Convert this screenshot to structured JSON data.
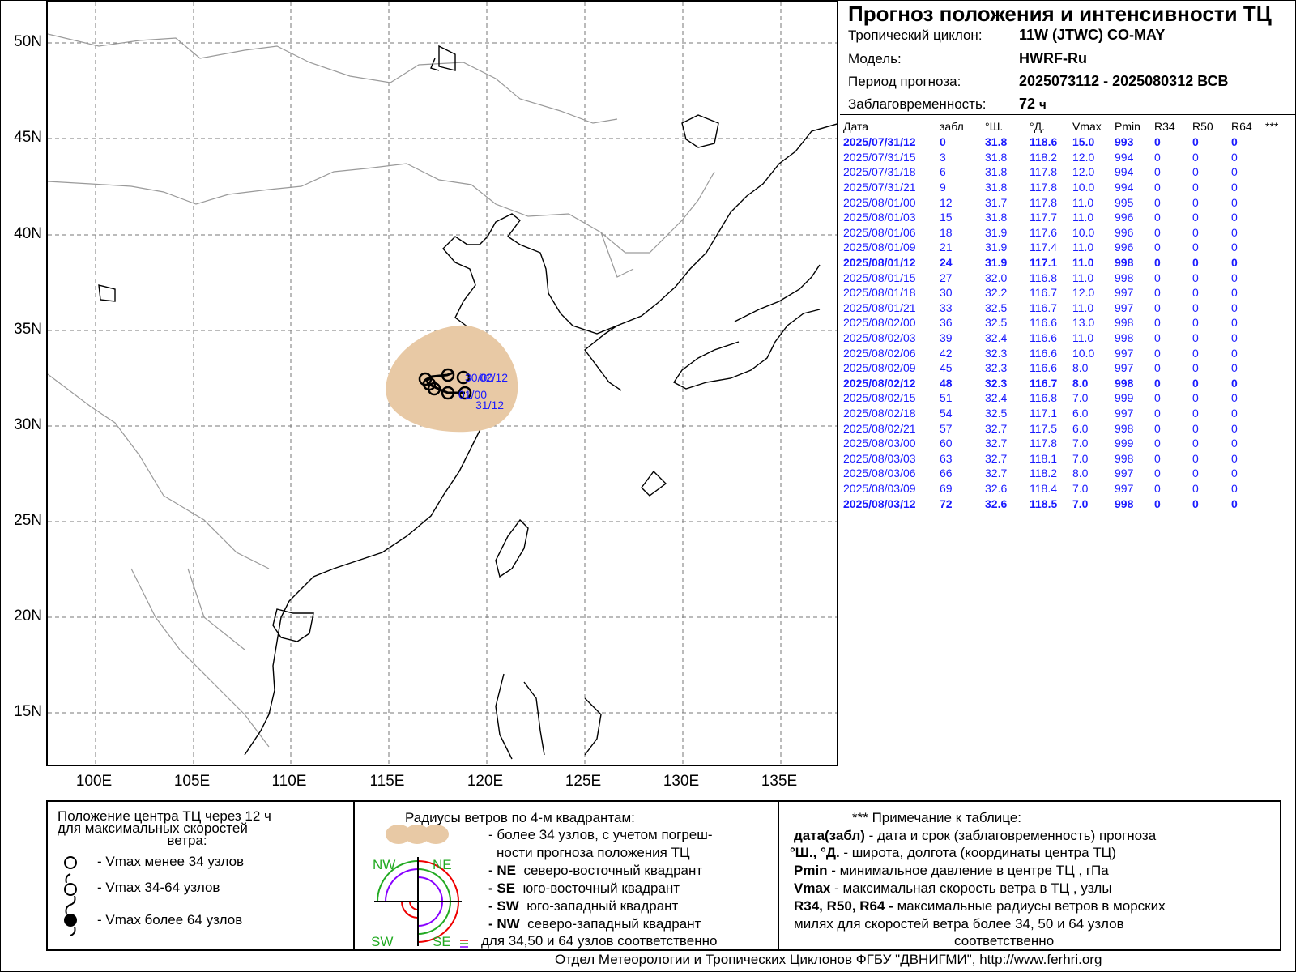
{
  "header": {
    "title": "Прогноз положения и интенсивности ТЦ",
    "cyclone_label": "Тропический циклон:",
    "cyclone_value": "11W (JTWC)  CO-MAY",
    "model_label": "Модель:",
    "model_value": "HWRF-Ru",
    "period_label": "Период прогноза:",
    "period_value": "2025073112 - 2025080312 ВСВ",
    "lead_label": "Заблаговременность:",
    "lead_value": "72",
    "lead_unit": "ч"
  },
  "table": {
    "columns": [
      "Дата",
      "забл",
      "°Ш.",
      "°Д.",
      "Vmax",
      "Pmin",
      "R34",
      "R50",
      "R64",
      "***"
    ],
    "rows": [
      {
        "date": "2025/07/31/12",
        "lead": "0",
        "lat": "31.8",
        "lon": "118.6",
        "vmax": "15.0",
        "pmin": "993",
        "r34": "0",
        "r50": "0",
        "r64": "0",
        "bold": true
      },
      {
        "date": "2025/07/31/15",
        "lead": "3",
        "lat": "31.8",
        "lon": "118.2",
        "vmax": "12.0",
        "pmin": "994",
        "r34": "0",
        "r50": "0",
        "r64": "0",
        "bold": false
      },
      {
        "date": "2025/07/31/18",
        "lead": "6",
        "lat": "31.8",
        "lon": "117.8",
        "vmax": "12.0",
        "pmin": "994",
        "r34": "0",
        "r50": "0",
        "r64": "0",
        "bold": false
      },
      {
        "date": "2025/07/31/21",
        "lead": "9",
        "lat": "31.8",
        "lon": "117.8",
        "vmax": "10.0",
        "pmin": "994",
        "r34": "0",
        "r50": "0",
        "r64": "0",
        "bold": false
      },
      {
        "date": "2025/08/01/00",
        "lead": "12",
        "lat": "31.7",
        "lon": "117.8",
        "vmax": "11.0",
        "pmin": "995",
        "r34": "0",
        "r50": "0",
        "r64": "0",
        "bold": false
      },
      {
        "date": "2025/08/01/03",
        "lead": "15",
        "lat": "31.8",
        "lon": "117.7",
        "vmax": "11.0",
        "pmin": "996",
        "r34": "0",
        "r50": "0",
        "r64": "0",
        "bold": false
      },
      {
        "date": "2025/08/01/06",
        "lead": "18",
        "lat": "31.9",
        "lon": "117.6",
        "vmax": "10.0",
        "pmin": "996",
        "r34": "0",
        "r50": "0",
        "r64": "0",
        "bold": false
      },
      {
        "date": "2025/08/01/09",
        "lead": "21",
        "lat": "31.9",
        "lon": "117.4",
        "vmax": "11.0",
        "pmin": "996",
        "r34": "0",
        "r50": "0",
        "r64": "0",
        "bold": false
      },
      {
        "date": "2025/08/01/12",
        "lead": "24",
        "lat": "31.9",
        "lon": "117.1",
        "vmax": "11.0",
        "pmin": "998",
        "r34": "0",
        "r50": "0",
        "r64": "0",
        "bold": true
      },
      {
        "date": "2025/08/01/15",
        "lead": "27",
        "lat": "32.0",
        "lon": "116.8",
        "vmax": "11.0",
        "pmin": "998",
        "r34": "0",
        "r50": "0",
        "r64": "0",
        "bold": false
      },
      {
        "date": "2025/08/01/18",
        "lead": "30",
        "lat": "32.2",
        "lon": "116.7",
        "vmax": "12.0",
        "pmin": "997",
        "r34": "0",
        "r50": "0",
        "r64": "0",
        "bold": false
      },
      {
        "date": "2025/08/01/21",
        "lead": "33",
        "lat": "32.5",
        "lon": "116.7",
        "vmax": "11.0",
        "pmin": "997",
        "r34": "0",
        "r50": "0",
        "r64": "0",
        "bold": false
      },
      {
        "date": "2025/08/02/00",
        "lead": "36",
        "lat": "32.5",
        "lon": "116.6",
        "vmax": "13.0",
        "pmin": "998",
        "r34": "0",
        "r50": "0",
        "r64": "0",
        "bold": false
      },
      {
        "date": "2025/08/02/03",
        "lead": "39",
        "lat": "32.4",
        "lon": "116.6",
        "vmax": "11.0",
        "pmin": "998",
        "r34": "0",
        "r50": "0",
        "r64": "0",
        "bold": false
      },
      {
        "date": "2025/08/02/06",
        "lead": "42",
        "lat": "32.3",
        "lon": "116.6",
        "vmax": "10.0",
        "pmin": "997",
        "r34": "0",
        "r50": "0",
        "r64": "0",
        "bold": false
      },
      {
        "date": "2025/08/02/09",
        "lead": "45",
        "lat": "32.3",
        "lon": "116.6",
        "vmax": "8.0",
        "pmin": "997",
        "r34": "0",
        "r50": "0",
        "r64": "0",
        "bold": false
      },
      {
        "date": "2025/08/02/12",
        "lead": "48",
        "lat": "32.3",
        "lon": "116.7",
        "vmax": "8.0",
        "pmin": "998",
        "r34": "0",
        "r50": "0",
        "r64": "0",
        "bold": true
      },
      {
        "date": "2025/08/02/15",
        "lead": "51",
        "lat": "32.4",
        "lon": "116.8",
        "vmax": "7.0",
        "pmin": "999",
        "r34": "0",
        "r50": "0",
        "r64": "0",
        "bold": false
      },
      {
        "date": "2025/08/02/18",
        "lead": "54",
        "lat": "32.5",
        "lon": "117.1",
        "vmax": "6.0",
        "pmin": "997",
        "r34": "0",
        "r50": "0",
        "r64": "0",
        "bold": false
      },
      {
        "date": "2025/08/02/21",
        "lead": "57",
        "lat": "32.7",
        "lon": "117.5",
        "vmax": "6.0",
        "pmin": "998",
        "r34": "0",
        "r50": "0",
        "r64": "0",
        "bold": false
      },
      {
        "date": "2025/08/03/00",
        "lead": "60",
        "lat": "32.7",
        "lon": "117.8",
        "vmax": "7.0",
        "pmin": "999",
        "r34": "0",
        "r50": "0",
        "r64": "0",
        "bold": false
      },
      {
        "date": "2025/08/03/03",
        "lead": "63",
        "lat": "32.7",
        "lon": "118.1",
        "vmax": "7.0",
        "pmin": "998",
        "r34": "0",
        "r50": "0",
        "r64": "0",
        "bold": false
      },
      {
        "date": "2025/08/03/06",
        "lead": "66",
        "lat": "32.7",
        "lon": "118.2",
        "vmax": "8.0",
        "pmin": "997",
        "r34": "0",
        "r50": "0",
        "r64": "0",
        "bold": false
      },
      {
        "date": "2025/08/03/09",
        "lead": "69",
        "lat": "32.6",
        "lon": "118.4",
        "vmax": "7.0",
        "pmin": "997",
        "r34": "0",
        "r50": "0",
        "r64": "0",
        "bold": false
      },
      {
        "date": "2025/08/03/12",
        "lead": "72",
        "lat": "32.6",
        "lon": "118.5",
        "vmax": "7.0",
        "pmin": "998",
        "r34": "0",
        "r50": "0",
        "r64": "0",
        "bold": true
      }
    ]
  },
  "map": {
    "lat_labels": [
      "50N",
      "45N",
      "40N",
      "35N",
      "30N",
      "25N",
      "20N",
      "15N"
    ],
    "lon_labels": [
      "100E",
      "105E",
      "110E",
      "115E",
      "120E",
      "125E",
      "130E",
      "135E"
    ],
    "track_labels": [
      "30/00",
      "02/12",
      "01/00",
      "31/12"
    ],
    "colors": {
      "uncertainty": "#e8c9a5",
      "track": "#000000",
      "labels": "#1a1aff",
      "land_border": "#999999"
    }
  },
  "legend": {
    "position_title_1": "Положение центра ТЦ через 12 ч",
    "position_title_2": "для максимальных скоростей",
    "position_title_3": "ветра:",
    "item1": "- Vmax  менее 34 узлов",
    "item2": "- Vmax  34-64 узлов",
    "item3": "- Vmax  более 64 узлов",
    "radii_title": "Радиусы ветров по 4-м квадрантам:",
    "radii_line1": "- более 34 узлов, с учетом погреш-",
    "radii_line2": "ности прогноза положения ТЦ",
    "ne_code": "- NE",
    "ne_text": "северо-восточный квадрант",
    "se_code": "- SE",
    "se_text": "юго-восточный квадрант",
    "sw_code": "- SW",
    "sw_text": "юго-западный квадрант",
    "nw_code": "- NW",
    "nw_text": "северо-западный квадрант",
    "radii_last": "для 34,50 и 64 узлов соответственно",
    "quad_nw": "NW",
    "quad_ne": "NE",
    "quad_sw": "SW",
    "quad_se": "SE",
    "note_title": "*** Примечание к таблице:",
    "note1_key": "дата(забл)",
    "note1_text": " - дата и срок (заблаговременность) прогноза",
    "note2_key": "°Ш., °Д.",
    "note2_text": " - широта, долгота   (координаты центра ТЦ)",
    "note3_key": "Pmin",
    "note3_text": "  - минимальное давление в центре ТЦ , гПа",
    "note4_key": "Vmax",
    "note4_text": "   - максимальная скорость ветра в ТЦ , узлы",
    "note5_key": "R34, R50, R64 -",
    "note5_text": " максимальные радиусы ветров в морских",
    "note6": "милях для скоростей ветра более 34, 50 и 64 узлов",
    "note7": "соответственно"
  },
  "footer": "Отдел Метеорологии и Тропических Циклонов ФГБУ \"ДВНИГМИ\",  http://www.ferhri.org"
}
